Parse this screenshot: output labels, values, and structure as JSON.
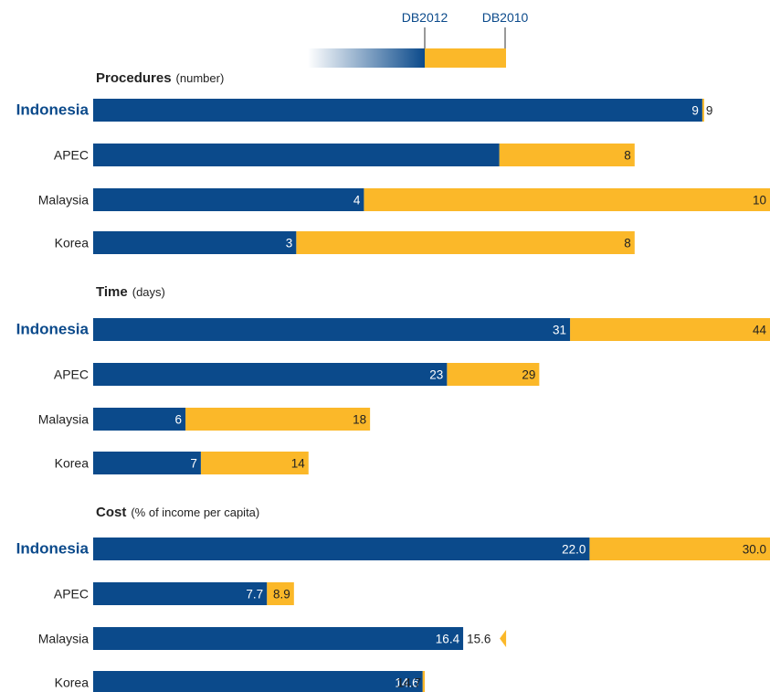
{
  "colors": {
    "db2012": "#0b4a8b",
    "db2010": "#fbb829",
    "highlight_label": "#0b4a8b",
    "text": "#222222"
  },
  "legend": {
    "db2012_label": "DB2012",
    "db2010_label": "DB2010"
  },
  "chart_data": [
    {
      "type": "bar",
      "orientation": "horizontal",
      "title": "Procedures",
      "unit": "(number)",
      "categories": [
        "Indonesia",
        "APEC",
        "Malaysia",
        "Korea"
      ],
      "highlight_category": "Indonesia",
      "series": [
        {
          "name": "DB2012",
          "values": [
            9,
            6,
            4,
            3
          ]
        },
        {
          "name": "DB2010",
          "values": [
            9,
            8,
            10,
            8
          ]
        }
      ],
      "labels_db2012": [
        "9",
        "",
        "4",
        "3"
      ],
      "labels_db2010": [
        "9",
        "8",
        "10",
        "8"
      ],
      "xlim": [
        0,
        10
      ]
    },
    {
      "type": "bar",
      "orientation": "horizontal",
      "title": "Time",
      "unit": "(days)",
      "categories": [
        "Indonesia",
        "APEC",
        "Malaysia",
        "Korea"
      ],
      "highlight_category": "Indonesia",
      "series": [
        {
          "name": "DB2012",
          "values": [
            31,
            23,
            6,
            7
          ]
        },
        {
          "name": "DB2010",
          "values": [
            44,
            29,
            18,
            14
          ]
        }
      ],
      "labels_db2012": [
        "31",
        "23",
        "6",
        "7"
      ],
      "labels_db2010": [
        "44",
        "29",
        "18",
        "14"
      ],
      "xlim": [
        0,
        44
      ]
    },
    {
      "type": "bar",
      "orientation": "horizontal",
      "title": "Cost",
      "unit": "(% of income per capita)",
      "categories": [
        "Indonesia",
        "APEC",
        "Malaysia",
        "Korea"
      ],
      "highlight_category": "Indonesia",
      "series": [
        {
          "name": "DB2012",
          "values": [
            22.0,
            7.7,
            16.4,
            14.6
          ]
        },
        {
          "name": "DB2010",
          "values": [
            30.0,
            8.9,
            15.6,
            14.7
          ]
        }
      ],
      "labels_db2012": [
        "22.0",
        "7.7",
        "16.4",
        "14.6"
      ],
      "labels_db2010": [
        "30.0",
        "8.9",
        "15.6",
        "14.7"
      ],
      "xlim": [
        0,
        30
      ]
    }
  ]
}
